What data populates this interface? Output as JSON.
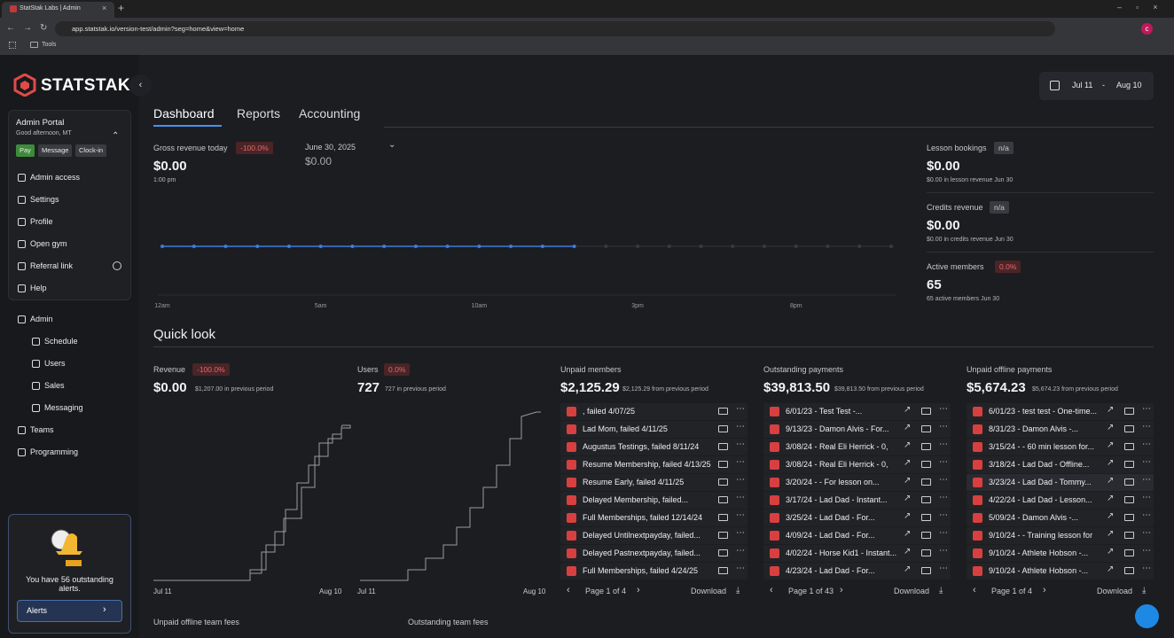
{
  "browser": {
    "tab_title": "StatStak Labs | Admin",
    "url": "app.statstak.io/version-test/admin?seg=home&view=home",
    "bookmark": "Tools"
  },
  "sidebar": {
    "brand": "STATSTAK",
    "portal": {
      "title": "Admin Portal",
      "greeting": "Good afternoon, MT",
      "buttons": [
        "Pay",
        "Message",
        "Clock-in"
      ]
    },
    "menu": [
      "Admin access",
      "Settings",
      "Profile",
      "Open gym",
      "Referral link",
      "Help"
    ],
    "section": "Admin",
    "section_items": [
      "Schedule",
      "Users",
      "Sales",
      "Messaging"
    ],
    "bottom_items": [
      "Teams",
      "Programming"
    ],
    "alert": {
      "text": "You have 56 outstanding alerts.",
      "button": "Alerts"
    }
  },
  "header": {
    "date_from": "Jul 11",
    "date_separator": "-",
    "date_to": "Aug 10",
    "tabs": [
      "Dashboard",
      "Reports",
      "Accounting"
    ]
  },
  "today": {
    "label": "Gross revenue today",
    "badge": "-100.0%",
    "value": "$0.00",
    "time": "1:00 pm",
    "compare_date": "June 30, 2025",
    "compare_value": "$0.00",
    "chart": {
      "type": "line",
      "color": "#3b7ddd",
      "values": [
        0,
        0,
        0,
        0,
        0,
        0,
        0,
        0,
        0,
        0,
        0,
        0,
        0,
        0,
        null,
        null,
        null,
        null,
        null,
        null,
        null,
        null,
        null,
        null
      ],
      "x_labels": [
        {
          "value": 0,
          "label": "12am"
        },
        {
          "value": 5,
          "label": "5am"
        },
        {
          "value": 10,
          "label": "10am"
        },
        {
          "value": 15,
          "label": "3pm"
        },
        {
          "value": 20,
          "label": "8pm"
        }
      ]
    }
  },
  "stats": [
    {
      "label": "Lesson bookings",
      "badge": "n/a",
      "value": "$0.00",
      "note": "$0.00 in lesson revenue Jun 30"
    },
    {
      "label": "Credits revenue",
      "badge": "n/a",
      "value": "$0.00",
      "note": "$0.00 in credits revenue Jun 30"
    },
    {
      "label": "Active members",
      "badge": "0.0%",
      "value": "65",
      "note": "65 active members Jun 30"
    }
  ],
  "quick_look": {
    "title": "Quick look",
    "cards": [
      {
        "label": "Revenue",
        "badge": "-100.0%",
        "value": "$0.00",
        "note": "$1,207.00 in previous period",
        "x_start": "Jul 11",
        "x_end": "Aug 10"
      },
      {
        "label": "Users",
        "badge": "0.0%",
        "value": "727",
        "note": "727 in previous period",
        "x_start": "Jul 11",
        "x_end": "Aug 10"
      }
    ],
    "lists": [
      {
        "title": "Unpaid members",
        "value": "$2,125.29",
        "note": "$2,125.29 from previous period",
        "pager": "Page 1 of 4",
        "download": "Download",
        "items": [
          ", failed 4/07/25",
          "Lad Mom, failed 4/11/25",
          "Augustus Testings, failed 8/11/24",
          "Resume Membership, failed 4/13/25",
          "Resume Early, failed 4/11/25",
          "Delayed Membership, failed...",
          "Full Memberships, failed 12/14/24",
          "Delayed Untilnextpayday, failed...",
          "Delayed Pastnextpayday, failed...",
          "Full Memberships, failed 4/24/25"
        ]
      },
      {
        "title": "Outstanding payments",
        "value": "$39,813.50",
        "note": "$39,813.50 from previous period",
        "pager": "Page 1 of 43",
        "download": "Download",
        "items": [
          "6/01/23 - Test Test -...",
          "9/13/23 - Damon Alvis - For...",
          "3/08/24 - Real Eli Herrick - 0,",
          "3/08/24 - Real Eli Herrick - 0,",
          "3/20/24 -   - For lesson on...",
          "3/17/24 - Lad Dad - Instant...",
          "3/25/24 - Lad Dad - For...",
          "4/09/24 - Lad Dad - For...",
          "4/02/24 - Horse Kid1 - Instant...",
          "4/23/24 - Lad Dad - For..."
        ]
      },
      {
        "title": "Unpaid offline payments",
        "value": "$5,674.23",
        "note": "$5,674.23 from previous period",
        "pager": "Page 1 of 4",
        "download": "Download",
        "items": [
          "6/01/23 - test test - One-time...",
          "8/31/23 - Damon Alvis -...",
          "3/15/24 -   - 60 min lesson for...",
          "3/18/24 - Lad Dad - Offline...",
          "3/23/24 - Lad Dad - Tommy...",
          "4/22/24 - Lad Dad - Lesson...",
          "5/09/24 - Damon Alvis -...",
          "9/10/24 -   - Training lesson for",
          "9/10/24 - Athlete Hobson -...",
          "9/10/24 - Athlete Hobson -..."
        ]
      }
    ],
    "team_fees": [
      "Unpaid offline team fees",
      "Outstanding team fees"
    ]
  }
}
